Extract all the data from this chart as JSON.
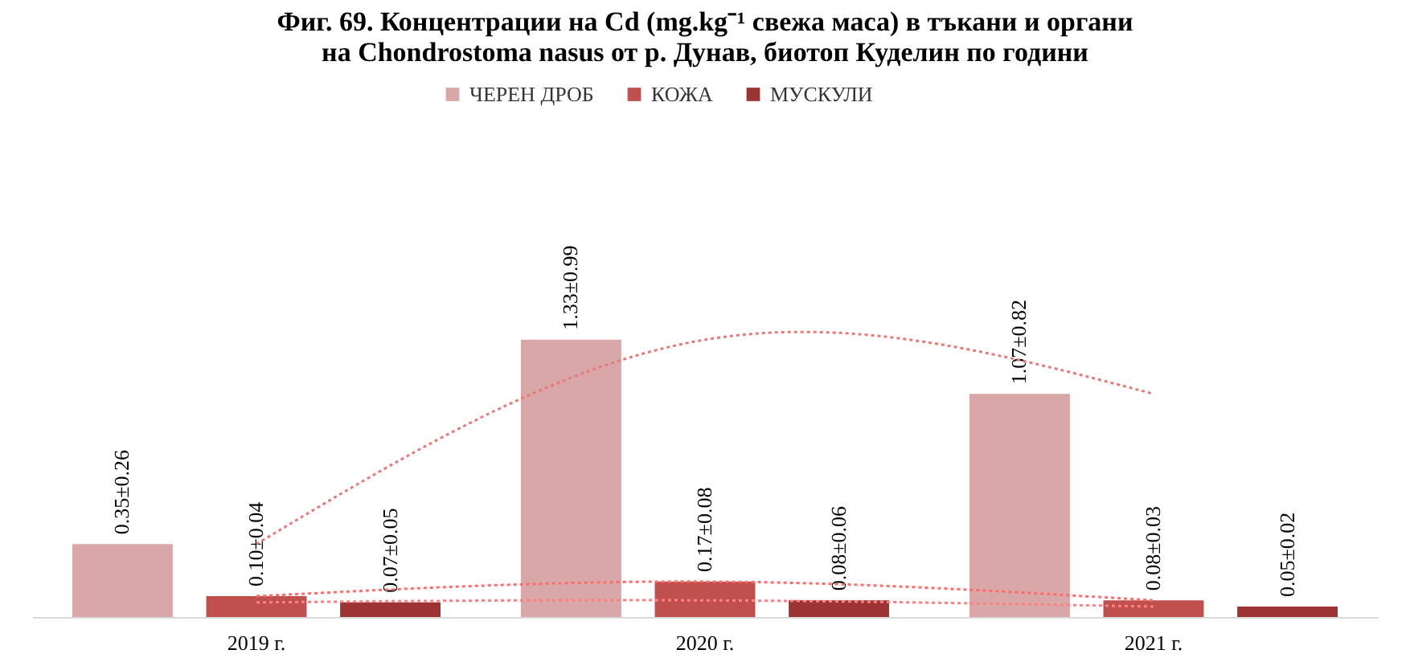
{
  "chart_data": {
    "type": "bar",
    "title": "Фиг. 69. Концентрации на Cd (mg.kg⁻¹ свежа маса) в тъкани и органи\nна Chondrostoma nasus от р. Дунав, биотоп Куделин по години",
    "categories": [
      "2019 г.",
      "2020 г.",
      "2021 г."
    ],
    "series": [
      {
        "name": "ЧЕРЕН ДРОБ",
        "color": "#d9a7a7",
        "values": [
          0.35,
          1.33,
          1.07
        ],
        "value_labels": [
          "0.35±0.26",
          "1.33±0.99",
          "1.07±0.82"
        ]
      },
      {
        "name": "КОЖА",
        "color": "#c0504d",
        "values": [
          0.1,
          0.17,
          0.08
        ],
        "value_labels": [
          "0.10±0.04",
          "0.17±0.08",
          "0.08±0.03"
        ]
      },
      {
        "name": "МУСКУЛИ",
        "color": "#9c3434",
        "values": [
          0.07,
          0.08,
          0.05
        ],
        "value_labels": [
          "0.07±0.05",
          "0.08±0.06",
          "0.05±0.02"
        ]
      },
      {
        "type": "line",
        "color": "#e47a7a",
        "line_style": "dotted",
        "x": [
          "2019 г.",
          "2020 г.",
          "2021 г."
        ],
        "values": [
          0.35,
          1.33,
          1.07
        ]
      },
      {
        "type": "line",
        "color": "#ff6b6b",
        "line_style": "dotted",
        "x": [
          "2019 г.",
          "2020 г.",
          "2021 г."
        ],
        "values": [
          0.1,
          0.17,
          0.08
        ]
      },
      {
        "type": "line",
        "color": "#ff8080",
        "line_style": "dotted",
        "x": [
          "2019 г.",
          "2020 г.",
          "2021 г."
        ],
        "values": [
          0.07,
          0.08,
          0.05
        ]
      }
    ],
    "legend": "top",
    "grid": false
  }
}
